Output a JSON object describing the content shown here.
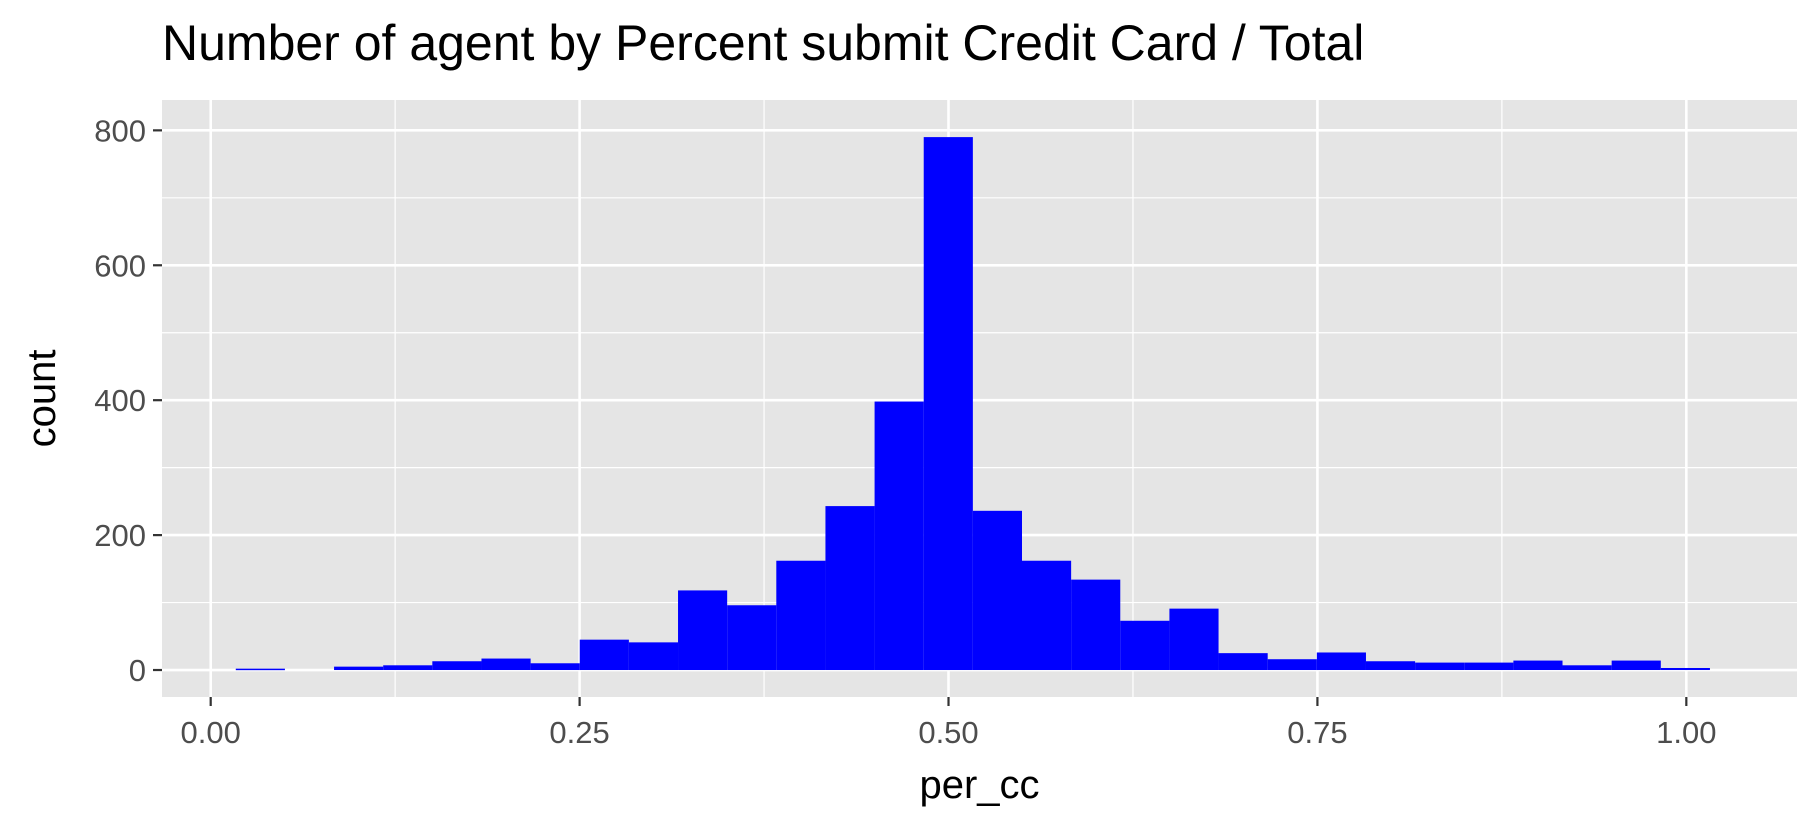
{
  "chart_data": {
    "type": "bar",
    "title": "Number of agent by Percent submit Credit Card / Total",
    "xlabel": "per_cc",
    "ylabel": "count",
    "xlim": [
      -0.033,
      1.075
    ],
    "ylim": [
      -40,
      845
    ],
    "x_ticks": [
      0,
      0.25,
      0.5,
      0.75,
      1
    ],
    "x_tick_labels": [
      "0.00",
      "0.25",
      "0.50",
      "0.75",
      "1.00"
    ],
    "y_ticks": [
      0,
      200,
      400,
      600,
      800
    ],
    "y_tick_labels": [
      "0",
      "200",
      "400",
      "600",
      "800"
    ],
    "grid": true,
    "bin_width": 0.0333,
    "bins_start": 0.017,
    "values": [
      2,
      0,
      5,
      7,
      13,
      17,
      10,
      45,
      41,
      118,
      96,
      162,
      243,
      398,
      790,
      236,
      162,
      134,
      73,
      91,
      25,
      16,
      26,
      13,
      11,
      11,
      14,
      7,
      14,
      3
    ],
    "colors": {
      "bar": "#0000ff",
      "panel": "#e5e5e5",
      "grid": "#ffffff",
      "tick": "#333333"
    }
  }
}
